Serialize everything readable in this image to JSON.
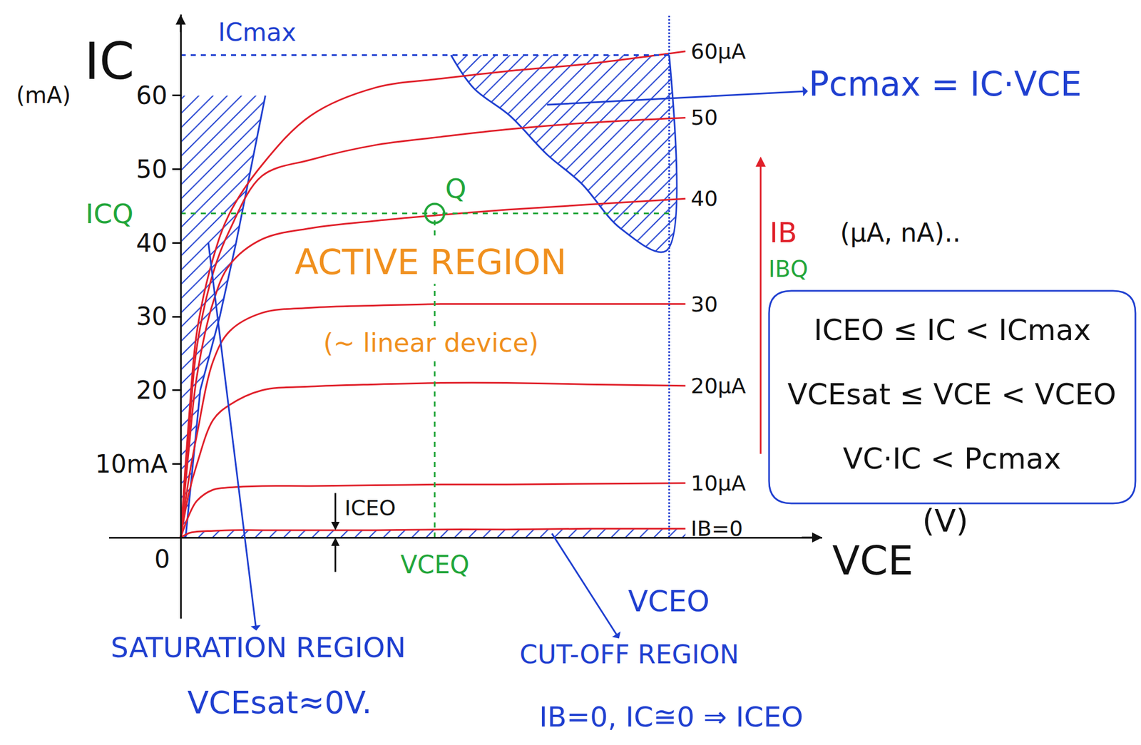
{
  "chart_data": {
    "type": "line",
    "x_label": "VCE",
    "x_unit": "(V)",
    "y_label": "IC",
    "y_unit": "(mA)",
    "xlim": [
      -4.4,
      39.4
    ],
    "ylim": [
      -11,
      71
    ],
    "yticks": [
      {
        "value": 10,
        "label": "10mA"
      },
      20,
      30,
      40,
      50,
      60
    ],
    "origin_label": "0",
    "tick_labels": "y",
    "grid": false,
    "color": "#e0202a",
    "x": [
      0,
      0.5,
      1,
      2,
      3,
      5,
      8,
      12,
      16,
      20,
      25,
      31
    ],
    "series": [
      {
        "name": "60µA",
        "values": [
          0,
          16,
          28,
          38,
          44,
          50.6,
          57.3,
          61.1,
          62.3,
          63.3,
          64.3,
          66
        ]
      },
      {
        "name": "50",
        "values": [
          0,
          14,
          26,
          36,
          41.7,
          49.1,
          51.3,
          53.3,
          54.4,
          55.4,
          56.3,
          57
        ]
      },
      {
        "name": "40",
        "values": [
          0,
          12,
          22,
          32,
          37,
          40.5,
          42,
          43,
          43.8,
          44.5,
          45.2,
          46
        ]
      },
      {
        "name": "30",
        "values": [
          0,
          8,
          14,
          24,
          28,
          30.5,
          31.2,
          31.5,
          31.7,
          31.7,
          31.7,
          31.7
        ]
      },
      {
        "name": "20µA",
        "values": [
          0,
          6,
          10,
          16,
          18,
          20,
          20.5,
          20.8,
          21,
          21,
          20.8,
          20.6
        ]
      },
      {
        "name": "10µA",
        "values": [
          0,
          3,
          5,
          6.5,
          6.8,
          7,
          7,
          7.1,
          7.2,
          7.2,
          7.3,
          7.4
        ]
      },
      {
        "name": "IB=0",
        "values": [
          0,
          0.6,
          0.8,
          0.9,
          1,
          1,
          1,
          1,
          1.1,
          1.1,
          1.2,
          1.2
        ]
      }
    ],
    "limits": {
      "ICmax": {
        "label": "ICmax",
        "value": 65.5,
        "color": "#1f3fd0",
        "line_style": "dash"
      },
      "VCEO": {
        "label": "VCEO",
        "value": 30,
        "color": "#1f3fd0",
        "line_style": "dot"
      }
    },
    "pcmax": {
      "label": "Pcmax = IC·VCE",
      "x": [
        16.6,
        18,
        20.2,
        22.5,
        24.6,
        27,
        29.8
      ],
      "values": [
        65.5,
        61,
        57.3,
        52,
        48.1,
        42,
        38.9
      ],
      "color": "#1f3fd0"
    },
    "saturation": {
      "label": "SATURATION REGION",
      "note": "VCEsat≈0V.",
      "x": [
        0.3,
        1.2,
        2.4,
        3.4,
        4.3,
        5.2
      ],
      "values": [
        0,
        20,
        30,
        40,
        50,
        60
      ],
      "color": "#1f3fd0"
    },
    "cutoff": {
      "label": "CUT-OFF REGION",
      "note": "IB=0, IC≅0 ⇒ ICEO",
      "color": "#1f3fd0"
    },
    "iceo": {
      "label": "ICEO",
      "x": 9.5,
      "value": 1,
      "color": "#111111"
    },
    "q_point": {
      "label": "Q",
      "x": 15.6,
      "y": 44,
      "x_label": "VCEQ",
      "y_label": "ICQ",
      "ib_label": "IBQ",
      "color": "#22a63a"
    },
    "active_region": {
      "label": "ACTIVE REGION",
      "note": "(~ linear device)",
      "color": "#f0901e"
    },
    "ib_direction": {
      "label": "IB",
      "note": "(µA, nA)..",
      "color": "#e0202a"
    },
    "constraints": {
      "lines": [
        "ICEO ≤ IC < ICmax",
        "VCEsat ≤ VCE < VCEO",
        "VC·IC < Pcmax"
      ],
      "color": "#1f3fd0"
    }
  }
}
